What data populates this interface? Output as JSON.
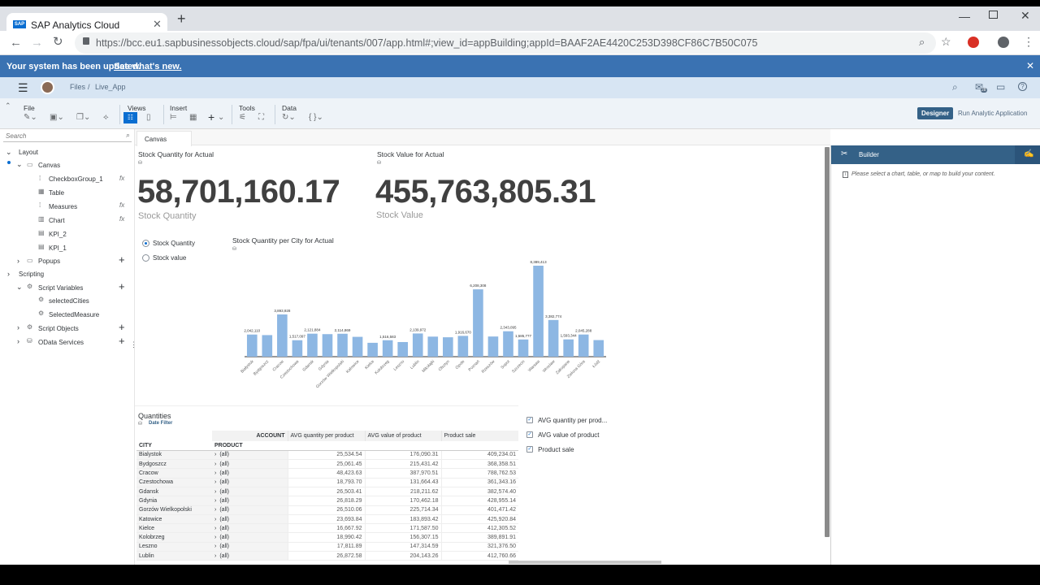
{
  "browser": {
    "tab_title": "SAP Analytics Cloud",
    "url": "https://bcc.eu1.sapbusinessobjects.cloud/sap/fpa/ui/tenants/007/app.html#;view_id=appBuilding;appId=BAAF2AE4420C253D398CF86C7B50C075"
  },
  "banner": {
    "text": "Your system has been updated.",
    "link": "See what's new."
  },
  "shell": {
    "crumb_files": "Files",
    "crumb_sep": "/",
    "crumb_app": "Live_App",
    "notif_count": "28"
  },
  "toolbar": {
    "file": "File",
    "views": "Views",
    "insert": "Insert",
    "tools": "Tools",
    "data": "Data",
    "designer": "Designer",
    "run": "Run Analytic Application"
  },
  "outline": {
    "search_placeholder": "Search",
    "layout": "Layout",
    "canvas": "Canvas",
    "items": [
      "CheckboxGroup_1",
      "Table",
      "Measures",
      "Chart",
      "KPI_2",
      "KPI_1"
    ],
    "popups": "Popups",
    "scripting": "Scripting",
    "script_variables": "Script Variables",
    "vars": [
      "selectedCities",
      "SelectedMeasure"
    ],
    "script_objects": "Script Objects",
    "odata": "OData Services"
  },
  "canvas_tab": "Canvas",
  "kpi1": {
    "title": "Stock Quantity for Actual",
    "value": "58,701,160.17",
    "sub": "Stock Quantity"
  },
  "kpi2": {
    "title": "Stock Value for Actual",
    "value": "455,763,805.31",
    "sub": "Stock Value"
  },
  "radio": {
    "opt1": "Stock Quantity",
    "opt2": "Stock value"
  },
  "chart_data": {
    "type": "bar",
    "title": "Stock Quantity per City for Actual",
    "categories": [
      "Białystok",
      "Bydgoszcz",
      "Cracow",
      "Czestochowa",
      "Gdansk",
      "Gdynia",
      "Gorzów Wielkopolski",
      "Katowice",
      "Kielce",
      "Kołobrzeg",
      "Leszno",
      "Lublin",
      "Mikołajki",
      "Olsztyn",
      "Opole",
      "Poznań",
      "Rzeszów",
      "Sopot",
      "Szczecin",
      "Warsaw",
      "Wrocław",
      "Zakopane",
      "Zielona Góra",
      "Łódź"
    ],
    "values": [
      2042110,
      null,
      3893928,
      1517097,
      2121884,
      null,
      2114869,
      null,
      null,
      1516583,
      null,
      2139972,
      null,
      null,
      1916670,
      6208308,
      null,
      2343095,
      1585777,
      8389413,
      3382774,
      1593344,
      2045288,
      null
    ],
    "value_labels": [
      "2,042,110",
      "",
      "3,893,928",
      "1,517,097",
      "2,121,884",
      "",
      "2,114,869",
      "",
      "",
      "1,516,583",
      "",
      "2,139,972",
      "",
      "",
      "1,916,670",
      "6,208,308",
      "",
      "2,343,095",
      "1,585,777",
      "8,389,413",
      "3,382,774",
      "1,593,344",
      "2,045,288",
      ""
    ],
    "bar_color": "#8db7e3"
  },
  "chart_fill_values": [
    2042110,
    1990000,
    3893928,
    1517097,
    2121884,
    2080000,
    2114869,
    1830000,
    1280000,
    1516583,
    1350000,
    2139972,
    1850000,
    1790000,
    1916670,
    6208308,
    1860000,
    2343095,
    1585777,
    8389413,
    3382774,
    1593344,
    2045288,
    1530000
  ],
  "table": {
    "title": "Quantities",
    "filter": "Date Filter",
    "account_label": "ACCOUNT",
    "city_label": "CITY",
    "product_label": "PRODUCT",
    "columns": [
      "AVG quantity per product",
      "AVG value of product",
      "Product sale"
    ],
    "rows": [
      {
        "city": "Bialystok",
        "product": "(all)",
        "v": [
          "25,534.54",
          "176,090.31",
          "409,234.01"
        ]
      },
      {
        "city": "Bydgoszcz",
        "product": "(all)",
        "v": [
          "25,061.45",
          "215,431.42",
          "368,358.51"
        ]
      },
      {
        "city": "Cracow",
        "product": "(all)",
        "v": [
          "48,423.63",
          "387,970.51",
          "788,762.53"
        ]
      },
      {
        "city": "Czestochowa",
        "product": "(all)",
        "v": [
          "18,793.70",
          "131,664.43",
          "361,343.16"
        ]
      },
      {
        "city": "Gdansk",
        "product": "(all)",
        "v": [
          "26,503.41",
          "218,211.62",
          "382,574.40"
        ]
      },
      {
        "city": "Gdynia",
        "product": "(all)",
        "v": [
          "26,818.29",
          "170,462.18",
          "428,955.14"
        ]
      },
      {
        "city": "Gorzów Wielkopolski",
        "product": "(all)",
        "v": [
          "26,510.06",
          "225,714.34",
          "401,471.42"
        ]
      },
      {
        "city": "Katowice",
        "product": "(all)",
        "v": [
          "23,693.84",
          "183,893.42",
          "425,920.84"
        ]
      },
      {
        "city": "Kielce",
        "product": "(all)",
        "v": [
          "16,667.92",
          "171,587.50",
          "412,305.52"
        ]
      },
      {
        "city": "Kolobrzeg",
        "product": "(all)",
        "v": [
          "18,990.42",
          "156,307.15",
          "389,891.91"
        ]
      },
      {
        "city": "Leszno",
        "product": "(all)",
        "v": [
          "17,811.89",
          "147,314.59",
          "321,376.50"
        ]
      },
      {
        "city": "Lublin",
        "product": "(all)",
        "v": [
          "26,872.58",
          "204,143.26",
          "412,760.66"
        ]
      }
    ]
  },
  "checkbox_group": [
    "AVG quantity per prod...",
    "AVG value of product",
    "Product sale"
  ],
  "builder": {
    "title": "Builder",
    "hint": "Please select a chart, table, or map to build your content."
  }
}
